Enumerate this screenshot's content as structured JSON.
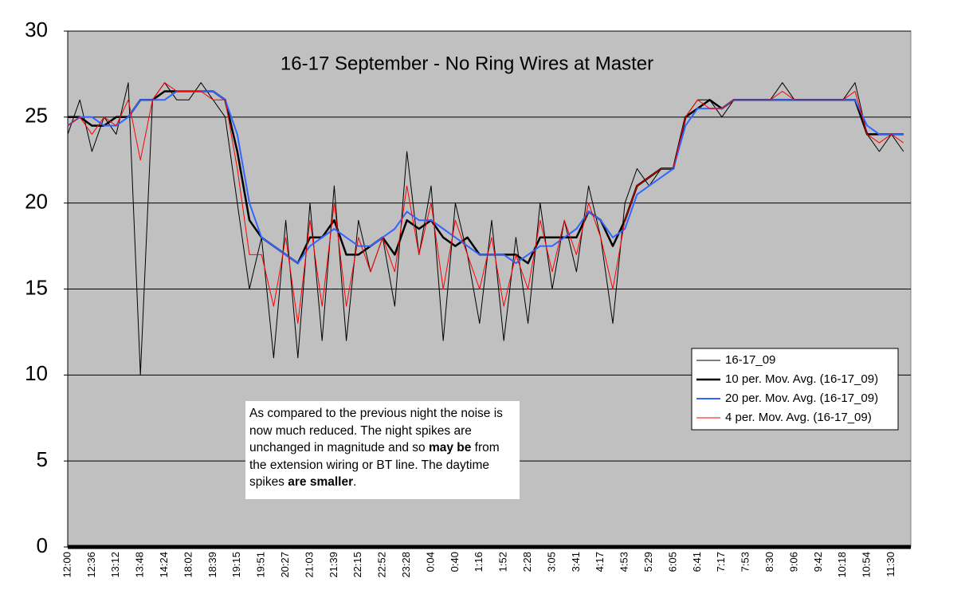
{
  "chart_data": {
    "type": "line",
    "title": "16-17 September - No Ring Wires at Master",
    "annotation_parts": [
      "As compared to the previous night the noise is now much reduced.  The night spikes are unchanged in magnitude and so ",
      "may be",
      " from the extension wiring or BT line.  The daytime spikes ",
      "are smaller",
      "."
    ],
    "categories": [
      "12:00",
      null,
      "12:36",
      null,
      "13:12",
      null,
      "13:48",
      null,
      "14:24",
      null,
      "18:02",
      null,
      "18:39",
      null,
      "19:15",
      null,
      "19:51",
      null,
      "20:27",
      null,
      "21:03",
      null,
      "21:39",
      null,
      "22:15",
      null,
      "22:52",
      null,
      "23:28",
      null,
      "0:04",
      null,
      "0:40",
      null,
      "1:16",
      null,
      "1:52",
      null,
      "2:28",
      null,
      "3:05",
      null,
      "3:41",
      null,
      "4:17",
      null,
      "4:53",
      null,
      "5:29",
      null,
      "6:05",
      null,
      "6:41",
      null,
      "7:17",
      null,
      "7:53",
      null,
      "8:30",
      null,
      "9:06",
      null,
      "9:42",
      null,
      "10:18",
      null,
      "10:54",
      null,
      "11:30",
      null
    ],
    "series": [
      {
        "name": "16-17_09",
        "color": "#000000",
        "width": 1,
        "values": [
          24,
          26,
          23,
          25,
          24,
          27,
          10,
          26,
          27,
          26,
          26,
          27,
          26,
          25,
          20,
          15,
          18,
          11,
          19,
          11,
          20,
          12,
          21,
          12,
          19,
          16,
          18,
          14,
          23,
          17,
          21,
          12,
          20,
          17,
          13,
          19,
          12,
          18,
          13,
          20,
          15,
          19,
          16,
          21,
          18,
          13,
          20,
          22,
          21,
          22,
          22,
          25,
          26,
          26,
          25,
          26,
          26,
          26,
          26,
          27,
          26,
          26,
          26,
          26,
          26,
          27,
          24,
          23,
          24,
          23
        ]
      },
      {
        "name": "10 per. Mov. Avg. (16-17_09)",
        "color": "#000000",
        "width": 2.5,
        "values": [
          25,
          25,
          24.5,
          24.5,
          25,
          25,
          26,
          26,
          26.5,
          26.5,
          26.5,
          26.5,
          26.5,
          26,
          23,
          19,
          18,
          17.5,
          17,
          16.5,
          18,
          18,
          19,
          17,
          17,
          17.5,
          18,
          17,
          19,
          18.5,
          19,
          18,
          17.5,
          18,
          17,
          17,
          17,
          17,
          16.5,
          18,
          18,
          18,
          18,
          19.5,
          19,
          17.5,
          19,
          21,
          21.5,
          22,
          22,
          25,
          25.5,
          26,
          25.5,
          26,
          26,
          26,
          26,
          26,
          26,
          26,
          26,
          26,
          26,
          26,
          24,
          24,
          24,
          24
        ]
      },
      {
        "name": "20 per. Mov. Avg. (16-17_09)",
        "color": "#3366ff",
        "width": 2,
        "values": [
          24.5,
          25,
          25,
          24.5,
          24.5,
          25,
          26,
          26,
          26,
          26.5,
          26.5,
          26.5,
          26.5,
          26,
          24,
          20,
          18,
          17.5,
          17,
          16.5,
          17.5,
          18,
          18.5,
          18,
          17.5,
          17.5,
          18,
          18.5,
          19.5,
          19,
          19,
          18.5,
          18,
          17.5,
          17,
          17,
          17,
          16.5,
          17,
          17.5,
          17.5,
          18,
          18.5,
          19.5,
          19,
          18,
          18.5,
          20.5,
          21,
          21.5,
          22,
          24.5,
          25.5,
          25.5,
          25.5,
          26,
          26,
          26,
          26,
          26,
          26,
          26,
          26,
          26,
          26,
          26,
          24.5,
          24,
          24,
          24
        ]
      },
      {
        "name": "4 per. Mov. Avg. (16-17_09)",
        "color": "#ff0000",
        "width": 1,
        "values": [
          24.5,
          25,
          24,
          25,
          24.5,
          26,
          22.5,
          26,
          27,
          26.5,
          26.5,
          26.5,
          26,
          26,
          22,
          17,
          17,
          14,
          18,
          13,
          19,
          14,
          20,
          14,
          18,
          16,
          18,
          16,
          21,
          17,
          20,
          15,
          19,
          17,
          15,
          18,
          14,
          17,
          15,
          19,
          16,
          19,
          17,
          20,
          18,
          15,
          19,
          21,
          21.5,
          22,
          22,
          25,
          26,
          25.5,
          25.5,
          26,
          26,
          26,
          26,
          26.5,
          26,
          26,
          26,
          26,
          26,
          26.5,
          24,
          23.5,
          24,
          23.5
        ]
      }
    ],
    "ylim": [
      0,
      30
    ],
    "yticks": [
      0,
      5,
      10,
      15,
      20,
      25,
      30
    ],
    "grid": true,
    "plot_color": "#c0c0c0",
    "legend": "right"
  }
}
